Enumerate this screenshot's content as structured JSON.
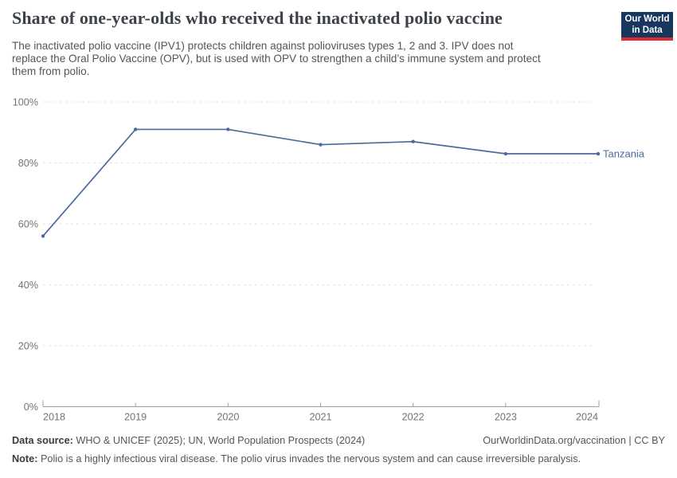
{
  "header": {
    "title": "Share of one-year-olds who received the inactivated polio vaccine",
    "subtitle_lines": [
      "The inactivated polio vaccine (IPV1) protects children against polioviruses types 1, 2 and 3. IPV does not",
      "replace the Oral Polio Vaccine (OPV), but is used with OPV to strengthen a child’s immune system and protect",
      "them from polio."
    ],
    "logo": {
      "line1": "Our World",
      "line2": "in Data",
      "bg_color": "#18375f",
      "bar_color": "#dc2e32"
    }
  },
  "chart_data": {
    "type": "line",
    "x": [
      2018,
      2019,
      2020,
      2021,
      2022,
      2023,
      2024
    ],
    "x_tick_labels": [
      "2018",
      "2019",
      "2020",
      "2021",
      "2022",
      "2023",
      "2024"
    ],
    "series": [
      {
        "name": "Tanzania",
        "values": [
          56,
          91,
          91,
          86,
          87,
          83,
          83
        ],
        "color": "#4c6a9c"
      }
    ],
    "ylim": [
      0,
      100
    ],
    "y_ticks": [
      {
        "value": 0,
        "label": "0%"
      },
      {
        "value": 20,
        "label": "20%"
      },
      {
        "value": 40,
        "label": "40%"
      },
      {
        "value": 60,
        "label": "60%"
      },
      {
        "value": 80,
        "label": "80%"
      },
      {
        "value": 100,
        "label": "100%"
      }
    ],
    "grid": true,
    "legend_position": "end-of-line-label",
    "axis_color": "#a0a0a0",
    "grid_color": "#e2e2e2",
    "tick_label_color": "#737373"
  },
  "footer": {
    "datasource_label": "Data source:",
    "datasource_text": " WHO & UNICEF (2025); UN, World Population Prospects (2024)",
    "link_text": "OurWorldinData.org/vaccination | CC BY",
    "note_label": "Note:",
    "note_text": " Polio is a highly infectious viral disease. The polio virus invades the nervous system and can cause irreversible paralysis."
  }
}
